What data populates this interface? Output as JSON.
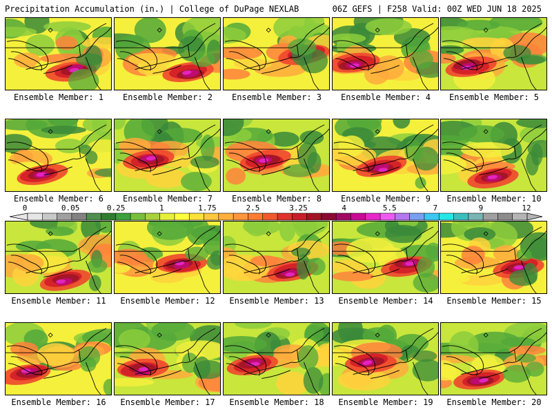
{
  "header": {
    "left_title": "Precipitation Accumulation (in.) | College of DuPage NEXLAB",
    "right_title": "06Z GEFS | F258 Valid: 00Z WED JUN 18 2025"
  },
  "panels": [
    {
      "caption": "Ensemble Member: 1",
      "seed": 11
    },
    {
      "caption": "Ensemble Member: 2",
      "seed": 23
    },
    {
      "caption": "Ensemble Member: 3",
      "seed": 37
    },
    {
      "caption": "Ensemble Member: 4",
      "seed": 41
    },
    {
      "caption": "Ensemble Member: 5",
      "seed": 53
    },
    {
      "caption": "Ensemble Member: 6",
      "seed": 67
    },
    {
      "caption": "Ensemble Member: 7",
      "seed": 71
    },
    {
      "caption": "Ensemble Member: 8",
      "seed": 83
    },
    {
      "caption": "Ensemble Member: 9",
      "seed": 97
    },
    {
      "caption": "Ensemble Member: 10",
      "seed": 101
    },
    {
      "caption": "Ensemble Member: 11",
      "seed": 113
    },
    {
      "caption": "Ensemble Member: 12",
      "seed": 127
    },
    {
      "caption": "Ensemble Member: 13",
      "seed": 131
    },
    {
      "caption": "Ensemble Member: 14",
      "seed": 149
    },
    {
      "caption": "Ensemble Member: 15",
      "seed": 151
    },
    {
      "caption": "Ensemble Member: 16",
      "seed": 163
    },
    {
      "caption": "Ensemble Member: 17",
      "seed": 173
    },
    {
      "caption": "Ensemble Member: 18",
      "seed": 181
    },
    {
      "caption": "Ensemble Member: 19",
      "seed": 191
    },
    {
      "caption": "Ensemble Member: 20",
      "seed": 199
    }
  ],
  "colorbar": {
    "labels": [
      "0",
      "0.05",
      "0.25",
      "1",
      "1.75",
      "2.5",
      "3.25",
      "4",
      "5.5",
      "7",
      "9",
      "12"
    ],
    "colors": [
      "#e6e6e6",
      "#c8c8c8",
      "#a0a0a0",
      "#828282",
      "#4f8f4f",
      "#2f7d2f",
      "#3ca03c",
      "#78c03c",
      "#a8d23c",
      "#e6f03c",
      "#ffff3c",
      "#ffe13c",
      "#ffc83c",
      "#ffaf3c",
      "#ff963c",
      "#ff7d32",
      "#f05a2d",
      "#e1322d",
      "#c81e28",
      "#a01423",
      "#8c0a32",
      "#a00a64",
      "#c80a96",
      "#e628c8",
      "#f05af0",
      "#b478f0",
      "#78a0f0",
      "#3cc8f0",
      "#28e6e6",
      "#3cbebe",
      "#78b4b4",
      "#a0a0a0",
      "#8c8c8c",
      "#b4b4b4"
    ]
  }
}
